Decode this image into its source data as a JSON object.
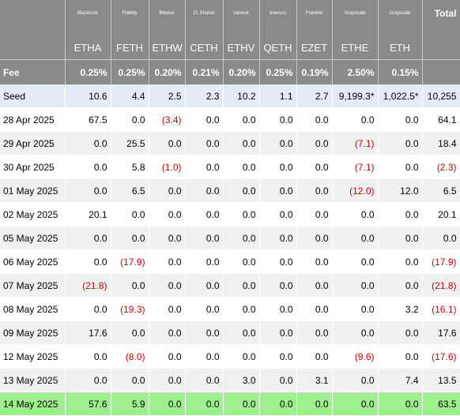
{
  "table": {
    "issuers": [
      "Blackrock",
      "Fidelity",
      "Bitwise",
      "21 Shares",
      "Vaneck",
      "Invesco",
      "Franklin",
      "Grayscale",
      "Grayscale"
    ],
    "total_header": "Total",
    "tickers": [
      "ETHA",
      "FETH",
      "ETHW",
      "CETH",
      "ETHV",
      "QETH",
      "EZET",
      "ETHE",
      "ETH"
    ],
    "fee_label": "Fee",
    "fees": [
      "0.25%",
      "0.25%",
      "0.20%",
      "0.21%",
      "0.20%",
      "0.25%",
      "0.19%",
      "2.50%",
      "0.15%"
    ],
    "rows": [
      [
        "Seed",
        "10.6",
        "4.4",
        "2.5",
        "2.3",
        "10.2",
        "1.1",
        "2.7",
        "9,199.3*",
        "1,022.5*",
        "10,255"
      ],
      [
        "28 Apr 2025",
        "67.5",
        "0.0",
        "(3.4)",
        "0.0",
        "0.0",
        "0.0",
        "0.0",
        "0.0",
        "0.0",
        "64.1"
      ],
      [
        "29 Apr 2025",
        "0.0",
        "25.5",
        "0.0",
        "0.0",
        "0.0",
        "0.0",
        "0.0",
        "(7.1)",
        "0.0",
        "18.4"
      ],
      [
        "30 Apr 2025",
        "0.0",
        "5.8",
        "(1.0)",
        "0.0",
        "0.0",
        "0.0",
        "0.0",
        "(7.1)",
        "0.0",
        "(2.3)"
      ],
      [
        "01 May 2025",
        "0.0",
        "6.5",
        "0.0",
        "0.0",
        "0.0",
        "0.0",
        "0.0",
        "(12.0)",
        "12.0",
        "6.5"
      ],
      [
        "02 May 2025",
        "20.1",
        "0.0",
        "0.0",
        "0.0",
        "0.0",
        "0.0",
        "0.0",
        "0.0",
        "0.0",
        "20.1"
      ],
      [
        "05 May 2025",
        "0.0",
        "0.0",
        "0.0",
        "0.0",
        "0.0",
        "0.0",
        "0.0",
        "0.0",
        "0.0",
        "0.0"
      ],
      [
        "06 May 2025",
        "0.0",
        "(17.9)",
        "0.0",
        "0.0",
        "0.0",
        "0.0",
        "0.0",
        "0.0",
        "0.0",
        "(17.9)"
      ],
      [
        "07 May 2025",
        "(21.8)",
        "0.0",
        "0.0",
        "0.0",
        "0.0",
        "0.0",
        "0.0",
        "0.0",
        "0.0",
        "(21.8)"
      ],
      [
        "08 May 2025",
        "0.0",
        "(19.3)",
        "0.0",
        "0.0",
        "0.0",
        "0.0",
        "0.0",
        "0.0",
        "3.2",
        "(16.1)"
      ],
      [
        "09 May 2025",
        "17.6",
        "0.0",
        "0.0",
        "0.0",
        "0.0",
        "0.0",
        "0.0",
        "0.0",
        "0.0",
        "17.6"
      ],
      [
        "12 May 2025",
        "0.0",
        "(8.0)",
        "0.0",
        "0.0",
        "0.0",
        "0.0",
        "0.0",
        "(9.6)",
        "0.0",
        "(17.6)"
      ],
      [
        "13 May 2025",
        "0.0",
        "0.0",
        "0.0",
        "0.0",
        "3.0",
        "0.0",
        "3.1",
        "0.0",
        "7.4",
        "13.5"
      ],
      [
        "14 May 2025",
        "57.6",
        "5.9",
        "0.0",
        "0.0",
        "0.0",
        "0.0",
        "0.0",
        "0.0",
        "0.0",
        "63.5"
      ]
    ]
  }
}
